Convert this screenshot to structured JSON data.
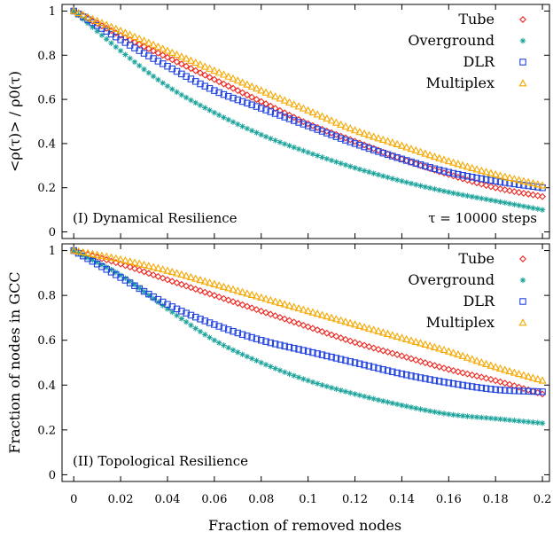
{
  "figure": {
    "xlabel": "Fraction of removed nodes",
    "x_ticks": [
      "0",
      "0.02",
      "0.04",
      "0.06",
      "0.08",
      "0.1",
      "0.12",
      "0.14",
      "0.16",
      "0.18",
      "0.2"
    ],
    "y_ticks": [
      "0",
      "0.2",
      "0.4",
      "0.6",
      "0.8",
      "1"
    ]
  },
  "chart_data": [
    {
      "type": "scatter",
      "panel": "top",
      "ylabel": "<ρ(τ)> / ρ0(τ)",
      "annotation_left": "(I) Dynamical Resilience",
      "annotation_right": "τ = 10000 steps",
      "xlim": [
        -0.005,
        0.203
      ],
      "ylim": [
        -0.03,
        1.03
      ],
      "legend_placement": "top-right",
      "series": [
        {
          "name": "Tube",
          "marker": "diamond",
          "color": "#ee2a24",
          "x": [
            0,
            0.02,
            0.04,
            0.06,
            0.08,
            0.1,
            0.12,
            0.14,
            0.16,
            0.18,
            0.2
          ],
          "y": [
            1.0,
            0.89,
            0.79,
            0.69,
            0.59,
            0.49,
            0.41,
            0.33,
            0.26,
            0.2,
            0.16
          ]
        },
        {
          "name": "Overground",
          "marker": "star",
          "color": "#1aa39a",
          "x": [
            0,
            0.02,
            0.04,
            0.06,
            0.08,
            0.1,
            0.12,
            0.14,
            0.16,
            0.18,
            0.2
          ],
          "y": [
            1.0,
            0.82,
            0.66,
            0.54,
            0.44,
            0.36,
            0.29,
            0.23,
            0.18,
            0.14,
            0.1
          ]
        },
        {
          "name": "DLR",
          "marker": "square",
          "color": "#2244dd",
          "x": [
            0,
            0.02,
            0.04,
            0.06,
            0.08,
            0.1,
            0.12,
            0.14,
            0.16,
            0.18,
            0.2
          ],
          "y": [
            1.0,
            0.87,
            0.75,
            0.64,
            0.56,
            0.48,
            0.4,
            0.33,
            0.27,
            0.23,
            0.2
          ]
        },
        {
          "name": "Multiplex",
          "marker": "triangle",
          "color": "#f5a800",
          "x": [
            0,
            0.02,
            0.04,
            0.06,
            0.08,
            0.1,
            0.12,
            0.14,
            0.16,
            0.18,
            0.2
          ],
          "y": [
            1.0,
            0.91,
            0.82,
            0.73,
            0.64,
            0.55,
            0.46,
            0.39,
            0.32,
            0.26,
            0.21
          ]
        }
      ]
    },
    {
      "type": "scatter",
      "panel": "bottom",
      "ylabel": "Fraction of nodes in GCC",
      "annotation_left": "(II) Topological Resilience",
      "xlim": [
        -0.005,
        0.203
      ],
      "ylim": [
        -0.03,
        1.03
      ],
      "legend_placement": "top-right",
      "series": [
        {
          "name": "Tube",
          "marker": "diamond",
          "color": "#ee2a24",
          "x": [
            0,
            0.02,
            0.04,
            0.06,
            0.08,
            0.1,
            0.12,
            0.14,
            0.16,
            0.18,
            0.2
          ],
          "y": [
            1.0,
            0.94,
            0.87,
            0.8,
            0.73,
            0.66,
            0.59,
            0.53,
            0.47,
            0.42,
            0.36
          ]
        },
        {
          "name": "Overground",
          "marker": "star",
          "color": "#1aa39a",
          "x": [
            0,
            0.02,
            0.04,
            0.06,
            0.08,
            0.1,
            0.12,
            0.14,
            0.16,
            0.18,
            0.2
          ],
          "y": [
            1.0,
            0.89,
            0.74,
            0.6,
            0.5,
            0.42,
            0.36,
            0.31,
            0.27,
            0.25,
            0.23
          ]
        },
        {
          "name": "DLR",
          "marker": "square",
          "color": "#2244dd",
          "x": [
            0,
            0.02,
            0.04,
            0.06,
            0.08,
            0.1,
            0.12,
            0.14,
            0.16,
            0.18,
            0.2
          ],
          "y": [
            1.0,
            0.88,
            0.76,
            0.67,
            0.6,
            0.55,
            0.5,
            0.45,
            0.41,
            0.38,
            0.37
          ]
        },
        {
          "name": "Multiplex",
          "marker": "triangle",
          "color": "#f5a800",
          "x": [
            0,
            0.02,
            0.04,
            0.06,
            0.08,
            0.1,
            0.12,
            0.14,
            0.16,
            0.18,
            0.2
          ],
          "y": [
            1.0,
            0.96,
            0.91,
            0.85,
            0.79,
            0.73,
            0.67,
            0.61,
            0.55,
            0.48,
            0.42
          ]
        }
      ]
    }
  ]
}
